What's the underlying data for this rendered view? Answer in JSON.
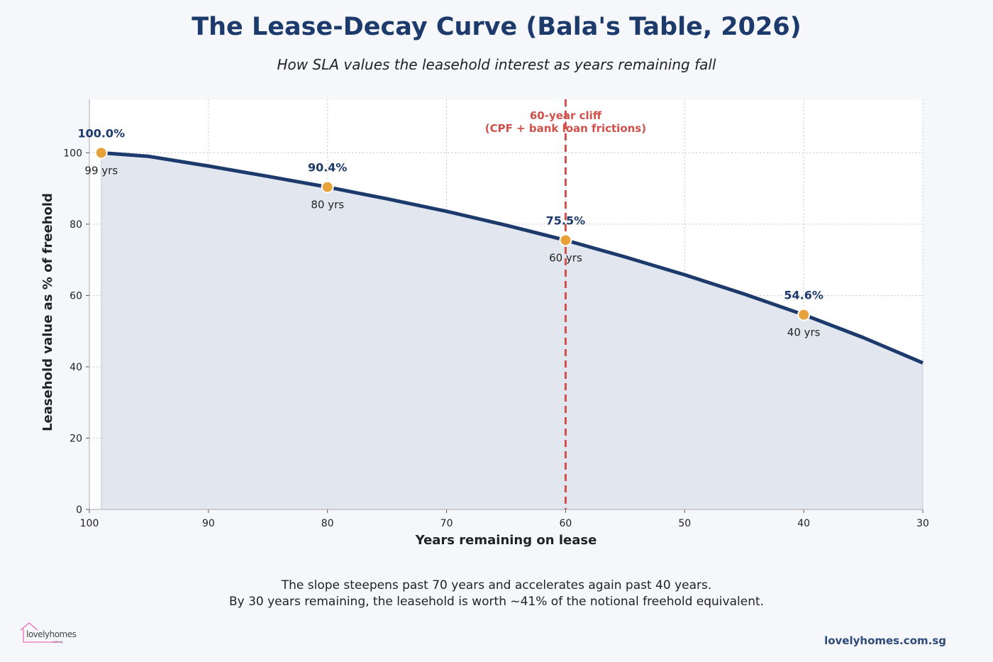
{
  "chart_data": {
    "type": "area",
    "title": "The Lease-Decay Curve (Bala's Table, 2026)",
    "subtitle": "How SLA values the leasehold interest as years remaining fall",
    "xlabel": "Years remaining on lease",
    "ylabel": "Leasehold value as % of freehold",
    "xlim": [
      100,
      30
    ],
    "x_reversed": true,
    "ylim": [
      0,
      115
    ],
    "xticks": [
      100,
      90,
      80,
      70,
      60,
      50,
      40,
      30
    ],
    "yticks": [
      0,
      20,
      40,
      60,
      80,
      100
    ],
    "grid": true,
    "series": [
      {
        "x": [
          99,
          95,
          90,
          85,
          80,
          75,
          70,
          65,
          60,
          55,
          50,
          45,
          40,
          35,
          30
        ],
        "y": [
          100.0,
          99.0,
          96.3,
          93.4,
          90.4,
          87.1,
          83.6,
          79.7,
          75.5,
          70.8,
          65.8,
          60.4,
          54.6,
          48.2,
          41.1
        ],
        "color": "#1c3a6b",
        "fill": "#e2e6ee"
      }
    ],
    "highlights": [
      {
        "x": 99,
        "y": 100.0,
        "value_label": "100.0%",
        "year_label": "99 yrs"
      },
      {
        "x": 80,
        "y": 90.4,
        "value_label": "90.4%",
        "year_label": "80 yrs"
      },
      {
        "x": 60,
        "y": 75.5,
        "value_label": "75.5%",
        "year_label": "60 yrs"
      },
      {
        "x": 40,
        "y": 54.6,
        "value_label": "54.6%",
        "year_label": "40 yrs"
      }
    ],
    "marker_color": "#e8a23a",
    "reference_line": {
      "x": 60,
      "color": "#d0504a",
      "label_line1": "60-year cliff",
      "label_line2": "(CPF + bank loan frictions)"
    }
  },
  "footnote": {
    "line1": "The slope steepens past 70 years and accelerates again past 40 years.",
    "line2": "By 30 years remaining, the leasehold is worth ~41% of the notional freehold equivalent."
  },
  "branding": {
    "logo_text": "lovelyhomes",
    "logo_sub": ".com.sg",
    "site": "lovelyhomes.com.sg"
  }
}
